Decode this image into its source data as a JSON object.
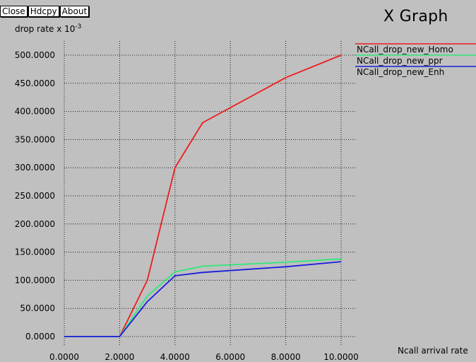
{
  "toolbar": {
    "close_label": "Close",
    "hdcpy_label": "Hdcpy",
    "about_label": "About"
  },
  "window_title": "X Graph",
  "chart_data": {
    "type": "line",
    "ylabel": "drop rate x 10",
    "ylabel_exponent": "-3",
    "xlabel": "Ncall arrival rate",
    "xlim": [
      0,
      10
    ],
    "ylim": [
      0,
      500
    ],
    "grid": true,
    "legend_position": "top-right",
    "x_ticks": [
      "0.0000",
      "2.0000",
      "4.0000",
      "6.0000",
      "8.0000",
      "10.0000"
    ],
    "y_ticks": [
      "0.0000",
      "50.0000",
      "100.0000",
      "150.0000",
      "200.0000",
      "250.0000",
      "300.0000",
      "350.0000",
      "400.0000",
      "450.0000",
      "500.0000"
    ],
    "series": [
      {
        "name": "NCall_drop_new_Homo",
        "color": "#ee1c1c",
        "x": [
          0,
          2,
          3,
          4,
          5,
          8,
          10
        ],
        "y": [
          0,
          0,
          100,
          300,
          380,
          460,
          500
        ]
      },
      {
        "name": "NCall_drop_new_ppr",
        "color": "#2ee87a",
        "x": [
          0,
          2,
          3,
          4,
          5,
          8,
          10
        ],
        "y": [
          0,
          0,
          72,
          115,
          125,
          132,
          138
        ]
      },
      {
        "name": "NCall_drop_new_Enh",
        "color": "#1a1ae0",
        "x": [
          0,
          2,
          3,
          4,
          5,
          8,
          10
        ],
        "y": [
          0,
          0,
          62,
          108,
          114,
          124,
          133
        ]
      }
    ]
  }
}
